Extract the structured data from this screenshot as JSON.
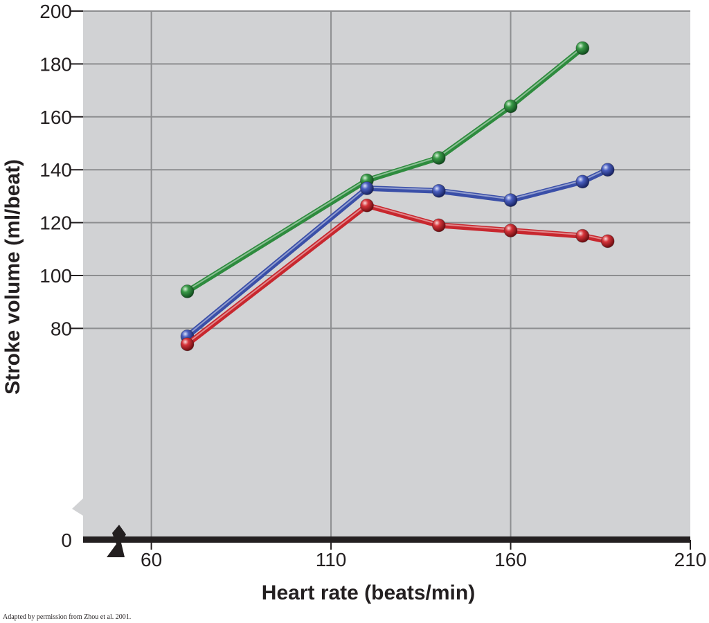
{
  "chart_data": {
    "type": "line",
    "title": "",
    "xlabel": "Heart rate (beats/min)",
    "ylabel": "Stroke volume (ml/beat)",
    "xlim": [
      41,
      210
    ],
    "ylim": [
      0,
      200
    ],
    "x_ticks": [
      "60",
      "110",
      "160",
      "210"
    ],
    "y_ticks": [
      "0",
      "80",
      "100",
      "120",
      "140",
      "160",
      "180",
      "200"
    ],
    "y_axis_break": true,
    "x_axis_break": true,
    "grid": true,
    "series": [
      {
        "color": "#2e8b3e",
        "x": [
          70,
          120,
          140,
          160,
          180
        ],
        "y": [
          94,
          136,
          144.5,
          164,
          186
        ]
      },
      {
        "color": "#3a4fa8",
        "x": [
          70,
          120,
          140,
          160,
          180,
          187
        ],
        "y": [
          77,
          133,
          132,
          128.5,
          135.5,
          140
        ]
      },
      {
        "color": "#c8272e",
        "x": [
          70,
          120,
          140,
          160,
          180,
          187
        ],
        "y": [
          74,
          126.5,
          119,
          117,
          115,
          113
        ]
      }
    ]
  },
  "credit": "Adapted by permission from Zhou et al. 2001."
}
